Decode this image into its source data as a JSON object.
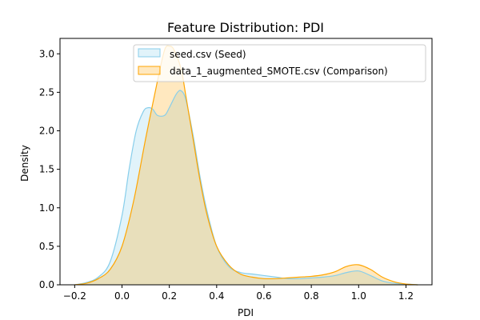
{
  "chart_data": {
    "type": "area",
    "title": "Feature Distribution: PDI",
    "xlabel": "PDI",
    "ylabel": "Density",
    "xlim": [
      -0.262,
      1.31
    ],
    "ylim": [
      0,
      3.2
    ],
    "xticks": [
      -0.2,
      0.0,
      0.2,
      0.4,
      0.6,
      0.8,
      1.0,
      1.2
    ],
    "xtick_labels": [
      "−0.2",
      "0.0",
      "0.2",
      "0.4",
      "0.6",
      "0.8",
      "1.0",
      "1.2"
    ],
    "yticks": [
      0.0,
      0.5,
      1.0,
      1.5,
      2.0,
      2.5,
      3.0
    ],
    "ytick_labels": [
      "0.0",
      "0.5",
      "1.0",
      "1.5",
      "2.0",
      "2.5",
      "3.0"
    ],
    "grid": false,
    "legend_position": "top-right",
    "series": [
      {
        "name": "seed.csv (Seed)",
        "line_color": "#87ceeb",
        "fill_color": "#87ceeb",
        "fill_opacity": 0.25,
        "x": [
          -0.2,
          -0.15,
          -0.1,
          -0.05,
          0.0,
          0.03,
          0.06,
          0.09,
          0.11,
          0.13,
          0.15,
          0.18,
          0.2,
          0.23,
          0.25,
          0.27,
          0.3,
          0.33,
          0.36,
          0.4,
          0.45,
          0.5,
          0.55,
          0.6,
          0.65,
          0.7,
          0.75,
          0.8,
          0.85,
          0.9,
          0.95,
          1.0,
          1.05,
          1.1,
          1.15,
          1.2,
          1.25
        ],
        "y": [
          0.0,
          0.03,
          0.1,
          0.3,
          0.9,
          1.5,
          2.0,
          2.25,
          2.3,
          2.28,
          2.2,
          2.2,
          2.3,
          2.48,
          2.52,
          2.4,
          1.95,
          1.4,
          0.95,
          0.5,
          0.24,
          0.16,
          0.14,
          0.12,
          0.1,
          0.08,
          0.08,
          0.09,
          0.1,
          0.12,
          0.16,
          0.18,
          0.12,
          0.05,
          0.02,
          0.01,
          0.0
        ]
      },
      {
        "name": "data_1_augmented_SMOTE.csv (Comparison)",
        "line_color": "#ffa500",
        "fill_color": "#ffa500",
        "fill_opacity": 0.25,
        "x": [
          -0.2,
          -0.15,
          -0.1,
          -0.05,
          0.0,
          0.05,
          0.1,
          0.15,
          0.18,
          0.2,
          0.22,
          0.25,
          0.27,
          0.3,
          0.33,
          0.36,
          0.4,
          0.45,
          0.5,
          0.55,
          0.6,
          0.65,
          0.7,
          0.75,
          0.8,
          0.85,
          0.9,
          0.95,
          1.0,
          1.05,
          1.1,
          1.15,
          1.2,
          1.25
        ],
        "y": [
          0.0,
          0.02,
          0.08,
          0.2,
          0.5,
          1.1,
          1.9,
          2.65,
          3.05,
          3.1,
          3.05,
          2.8,
          2.45,
          1.9,
          1.35,
          0.9,
          0.5,
          0.26,
          0.14,
          0.1,
          0.08,
          0.08,
          0.09,
          0.1,
          0.11,
          0.13,
          0.17,
          0.24,
          0.26,
          0.2,
          0.1,
          0.04,
          0.01,
          0.0
        ]
      }
    ]
  }
}
